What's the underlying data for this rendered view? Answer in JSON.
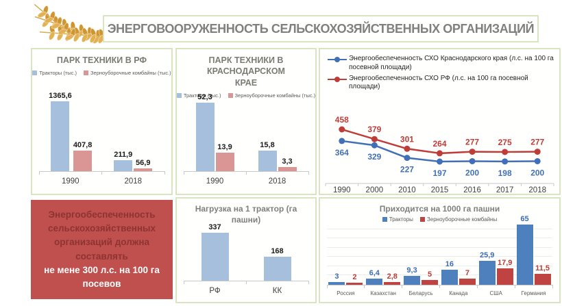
{
  "header": {
    "title": "ЭНЕРГОВООРУЖЕННОСТЬ СЕЛЬСКОХОЗЯЙСТВЕННЫХ ОРГАНИЗАЦИЙ"
  },
  "logo": {
    "icon": "wheat-ears"
  },
  "colors": {
    "panel_border": "#d9e5c1",
    "title_gray": "#808080",
    "bar_blue_light": "#a5bfdd",
    "bar_salmon": "#d99694",
    "line_blue": "#4170b8",
    "line_red": "#bf3d38",
    "bar_blue_strong": "#4d80bd",
    "bar_red_strong": "#bf4441",
    "axis_gray": "#c9c9c9"
  },
  "info_box": {
    "text_regular": "Энергообеспеченность сельскохозяйственных организаций должна составлять",
    "text_bold": "не мене 300 л.с. на 100 га посевов",
    "bg": "#c0504d",
    "text_regular_color": "#8d3432",
    "text_bold_color": "#ffffff"
  },
  "chart_data": [
    {
      "id": "park_rf",
      "type": "bar",
      "title": "ПАРК ТЕХНИКИ В РФ",
      "categories": [
        "1990",
        "2018"
      ],
      "series": [
        {
          "name": "Тракторы (тыс.)",
          "color": "#a5bfdd",
          "label_color": "#1a1a1a",
          "values": [
            1365.6,
            211.9
          ],
          "labels": [
            "1365,6",
            "211,9"
          ]
        },
        {
          "name": "Зерноуборочные комбайны (тыс.)",
          "color": "#d99694",
          "label_color": "#1a1a1a",
          "values": [
            407.8,
            56.9
          ],
          "labels": [
            "407,8",
            "56,9"
          ]
        }
      ],
      "legend_position": "top",
      "ylim": [
        0,
        1400
      ],
      "grid": false
    },
    {
      "id": "park_kk",
      "type": "bar",
      "title": "ПАРК ТЕХНИКИ В КРАСНОДАРСКОМ КРАЕ",
      "categories": [
        "1990",
        "2018"
      ],
      "series": [
        {
          "name": "Тракторы (тыс.)",
          "color": "#a5bfdd",
          "label_color": "#1a1a1a",
          "values": [
            52.3,
            15.8
          ],
          "labels": [
            "52,3",
            "15,8"
          ]
        },
        {
          "name": "Зерноуборочные комбайны (тыс.)",
          "color": "#d99694",
          "label_color": "#1a1a1a",
          "values": [
            13.9,
            3.3
          ],
          "labels": [
            "13,9",
            "3,3"
          ]
        }
      ],
      "legend_position": "top",
      "ylim": [
        0,
        55
      ],
      "grid": false
    },
    {
      "id": "energy",
      "type": "line",
      "x": [
        "1990",
        "2000",
        "2010",
        "2015",
        "2016",
        "2017",
        "2018"
      ],
      "series": [
        {
          "name": "Энергообеспеченность СХО Краснодарского края (л.с. на 100 га посевной площади)",
          "color": "#4170b8",
          "values": [
            364,
            329,
            227,
            197,
            200,
            198,
            200
          ],
          "labels": [
            "364",
            "329",
            "227",
            "197",
            "200",
            "198",
            "200"
          ],
          "label_offset": "below"
        },
        {
          "name": "Энергообеспеченность СХО РФ (л.с. на 100 га посевной площади)",
          "color": "#bf3d38",
          "values": [
            458,
            379,
            301,
            264,
            277,
            275,
            277
          ],
          "labels": [
            "458",
            "379",
            "301",
            "264",
            "277",
            "275",
            "277"
          ],
          "label_offset": "above"
        }
      ],
      "legend_position": "top",
      "ylim": [
        180,
        480
      ],
      "grid": false
    },
    {
      "id": "tractor_load",
      "type": "bar",
      "title": "Нагрузка на 1 трактор (га пашни)",
      "categories": [
        "РФ",
        "КК"
      ],
      "series": [
        {
          "name": "",
          "color": "#a5bfdd",
          "label_color": "#1a1a1a",
          "values": [
            337,
            168
          ],
          "labels": [
            "337",
            "168"
          ]
        }
      ],
      "legend_position": "none",
      "ylim": [
        0,
        350
      ],
      "grid": false
    },
    {
      "id": "per1000",
      "type": "bar",
      "title": "Приходится на 1000 га пашни",
      "categories": [
        "Россия",
        "Казахстан",
        "Беларусь",
        "Канада",
        "США",
        "Германия"
      ],
      "series": [
        {
          "name": "Тракторы",
          "color": "#4d80bd",
          "label_color": "#3c6cb5",
          "values": [
            3,
            6.4,
            9.3,
            16,
            25.9,
            65
          ],
          "labels": [
            "3",
            "6,4",
            "9,3",
            "16",
            "25,9",
            "65"
          ]
        },
        {
          "name": "Зерноуборочные комбайны",
          "color": "#bf4441",
          "label_color": "#bf3a35",
          "values": [
            2,
            2.8,
            5,
            7,
            17.9,
            11.5
          ],
          "labels": [
            "2",
            "2,8",
            "5",
            "7",
            "17,9",
            "11,5"
          ]
        }
      ],
      "legend_position": "top",
      "ylim": [
        0,
        70
      ],
      "gridline_values": [
        10,
        20,
        30,
        40,
        50,
        60
      ]
    }
  ]
}
